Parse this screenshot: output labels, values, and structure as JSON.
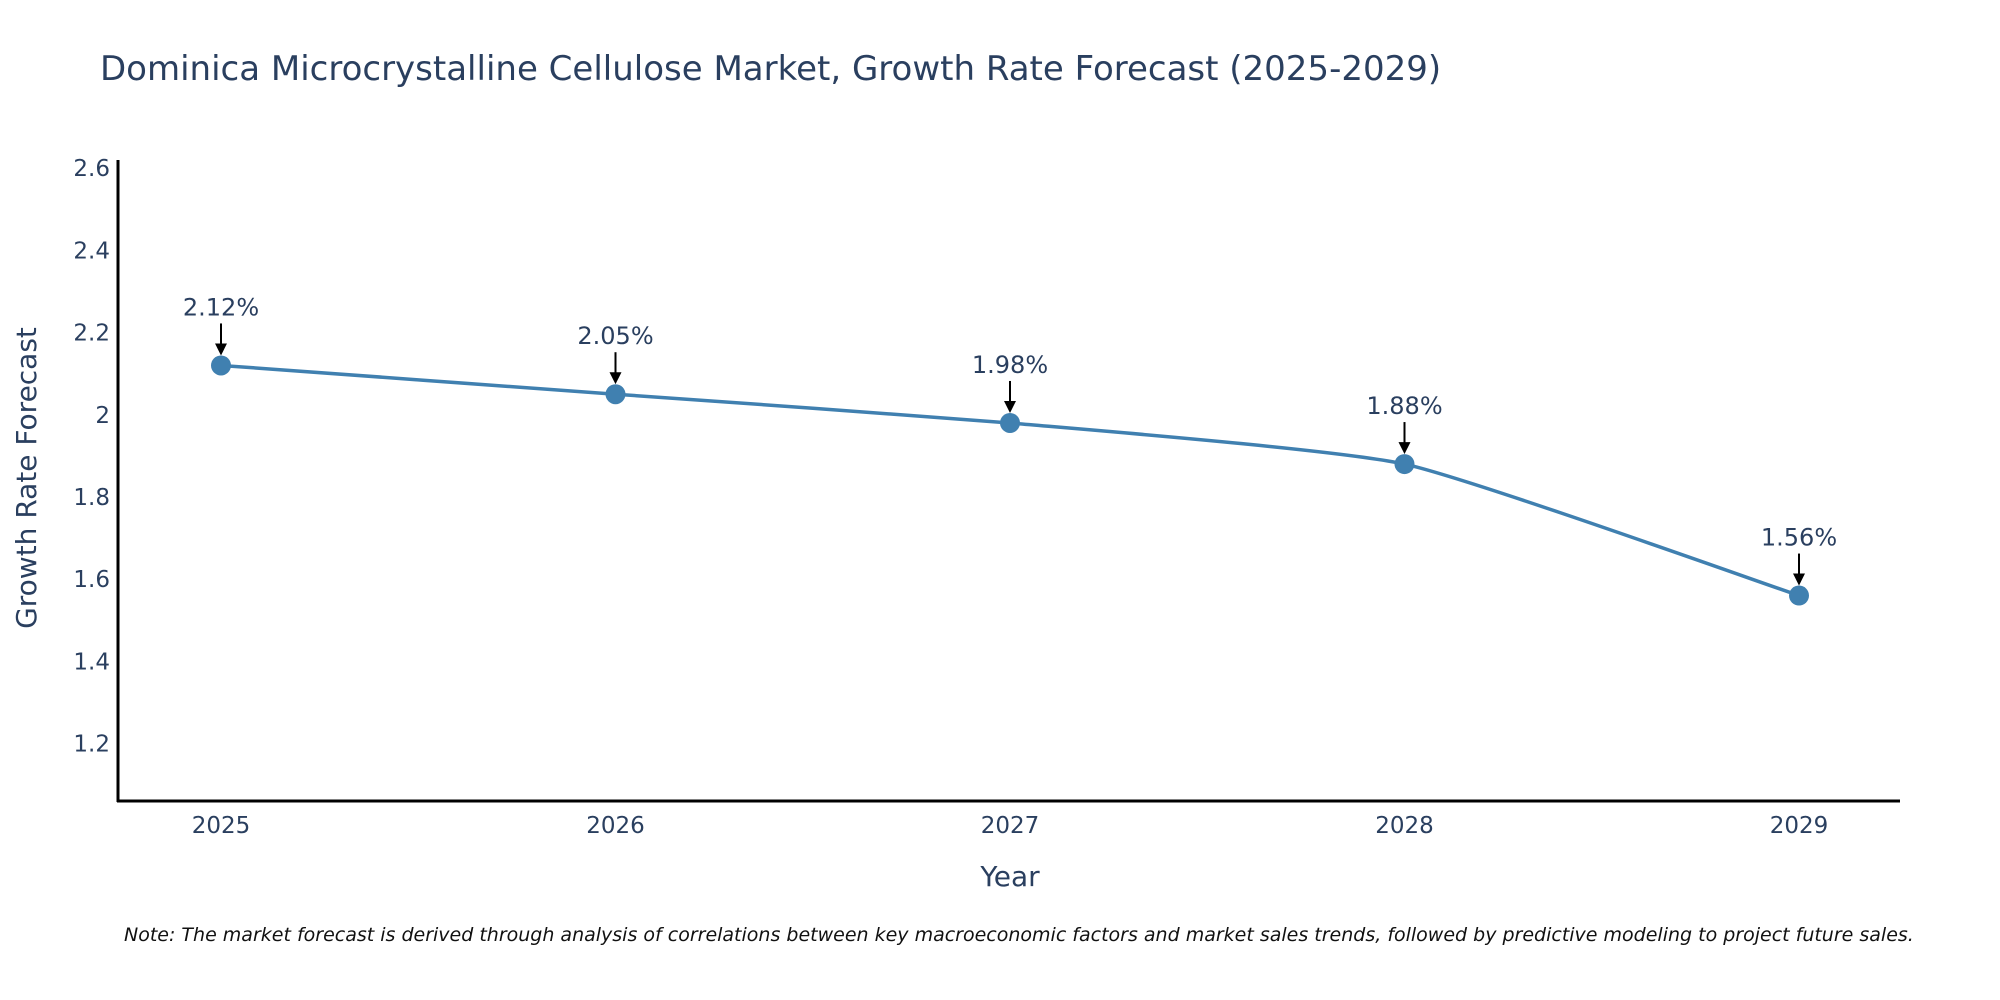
{
  "chart_data": {
    "type": "line",
    "title": "Dominica Microcrystalline Cellulose Market, Growth Rate Forecast (2025-2029)",
    "xlabel": "Year",
    "ylabel": "Growth Rate Forecast",
    "categories": [
      "2025",
      "2026",
      "2027",
      "2028",
      "2029"
    ],
    "values": [
      2.12,
      2.05,
      1.98,
      1.88,
      1.56
    ],
    "data_labels": [
      "2.12%",
      "2.05%",
      "1.98%",
      "1.88%",
      "1.56%"
    ],
    "yticks": [
      1.2,
      1.4,
      1.6,
      1.8,
      2,
      2.2,
      2.4,
      2.6
    ],
    "ytick_labels": [
      "1.2",
      "1.4",
      "1.6",
      "1.8",
      "2",
      "2.2",
      "2.4",
      "2.6"
    ],
    "ylim": [
      1.06,
      2.62
    ],
    "grid": false,
    "line_color": "#4080b0",
    "marker_color": "#4080b0",
    "arrow_color": "#000000",
    "note": "Note: The market forecast is derived through analysis of correlations between key macroeconomic factors and market sales trends, followed by predictive modeling to project future sales."
  }
}
